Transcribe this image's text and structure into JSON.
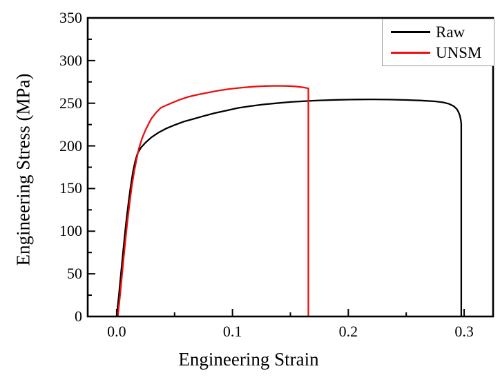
{
  "colors": {
    "background": "#ffffff",
    "frame": "#000000",
    "tick": "#000000",
    "legend_border": "#989898",
    "raw_series": "#000000",
    "unsm_series": "#ed0e0e"
  },
  "chart_data": {
    "type": "line",
    "title": "",
    "xlabel": "Engineering Strain",
    "ylabel": "Engineering Stress (MPa)",
    "xlim": [
      -0.025,
      0.325
    ],
    "ylim": [
      0,
      350
    ],
    "grid": false,
    "legend_position": "top-right",
    "x_major_ticks": [
      {
        "value": 0.0,
        "label": "0.0"
      },
      {
        "value": 0.1,
        "label": "0.1"
      },
      {
        "value": 0.2,
        "label": "0.2"
      },
      {
        "value": 0.3,
        "label": "0.3"
      }
    ],
    "x_minor_ticks": [
      0.05,
      0.15,
      0.25
    ],
    "y_major_ticks": [
      {
        "value": 0,
        "label": "0"
      },
      {
        "value": 50,
        "label": "50"
      },
      {
        "value": 100,
        "label": "100"
      },
      {
        "value": 150,
        "label": "150"
      },
      {
        "value": 200,
        "label": "200"
      },
      {
        "value": 250,
        "label": "250"
      },
      {
        "value": 300,
        "label": "300"
      },
      {
        "value": 350,
        "label": "350"
      }
    ],
    "y_minor_ticks": [
      25,
      75,
      125,
      175,
      225,
      275,
      325
    ],
    "series": [
      {
        "name": "Raw",
        "color": "#000000",
        "points": [
          [
            0.0,
            0
          ],
          [
            0.002,
            26
          ],
          [
            0.004,
            54
          ],
          [
            0.006,
            82
          ],
          [
            0.008,
            108
          ],
          [
            0.01,
            131
          ],
          [
            0.012,
            152
          ],
          [
            0.014,
            169
          ],
          [
            0.016,
            182
          ],
          [
            0.018,
            191
          ],
          [
            0.021,
            198
          ],
          [
            0.025,
            204
          ],
          [
            0.03,
            210
          ],
          [
            0.036,
            215.5
          ],
          [
            0.043,
            220.5
          ],
          [
            0.05,
            224.5
          ],
          [
            0.058,
            228.5
          ],
          [
            0.066,
            231.5
          ],
          [
            0.075,
            235
          ],
          [
            0.085,
            238.5
          ],
          [
            0.095,
            241.5
          ],
          [
            0.105,
            244.5
          ],
          [
            0.115,
            246.5
          ],
          [
            0.126,
            248.5
          ],
          [
            0.138,
            250
          ],
          [
            0.15,
            251.5
          ],
          [
            0.163,
            252.5
          ],
          [
            0.175,
            253.3
          ],
          [
            0.19,
            254
          ],
          [
            0.205,
            254.4
          ],
          [
            0.22,
            254.5
          ],
          [
            0.235,
            254.3
          ],
          [
            0.25,
            253.8
          ],
          [
            0.263,
            253.2
          ],
          [
            0.275,
            252.2
          ],
          [
            0.282,
            251
          ],
          [
            0.287,
            249.2
          ],
          [
            0.291,
            246.5
          ],
          [
            0.2935,
            243.5
          ],
          [
            0.295,
            240
          ],
          [
            0.2963,
            235.5
          ],
          [
            0.2971,
            230.5
          ],
          [
            0.2975,
            226
          ],
          [
            0.2975,
            0
          ]
        ]
      },
      {
        "name": "UNSM",
        "color": "#ed0e0e",
        "points": [
          [
            0.001,
            0
          ],
          [
            0.003,
            26
          ],
          [
            0.005,
            54
          ],
          [
            0.007,
            82
          ],
          [
            0.009,
            108
          ],
          [
            0.011,
            131
          ],
          [
            0.013,
            152
          ],
          [
            0.015,
            169
          ],
          [
            0.017,
            183
          ],
          [
            0.019,
            196
          ],
          [
            0.022,
            209
          ],
          [
            0.025,
            219
          ],
          [
            0.028,
            227
          ],
          [
            0.03,
            232
          ],
          [
            0.034,
            239
          ],
          [
            0.038,
            244.5
          ],
          [
            0.041,
            246.5
          ],
          [
            0.047,
            250
          ],
          [
            0.054,
            254
          ],
          [
            0.062,
            257.5
          ],
          [
            0.07,
            260
          ],
          [
            0.079,
            262.5
          ],
          [
            0.088,
            264.8
          ],
          [
            0.098,
            266.8
          ],
          [
            0.108,
            268.3
          ],
          [
            0.118,
            269.4
          ],
          [
            0.128,
            270.1
          ],
          [
            0.138,
            270.4
          ],
          [
            0.147,
            270.2
          ],
          [
            0.154,
            269.7
          ],
          [
            0.159,
            269
          ],
          [
            0.162,
            268.4
          ],
          [
            0.164,
            267.9
          ],
          [
            0.1655,
            267.4
          ],
          [
            0.1655,
            0
          ]
        ]
      }
    ]
  }
}
